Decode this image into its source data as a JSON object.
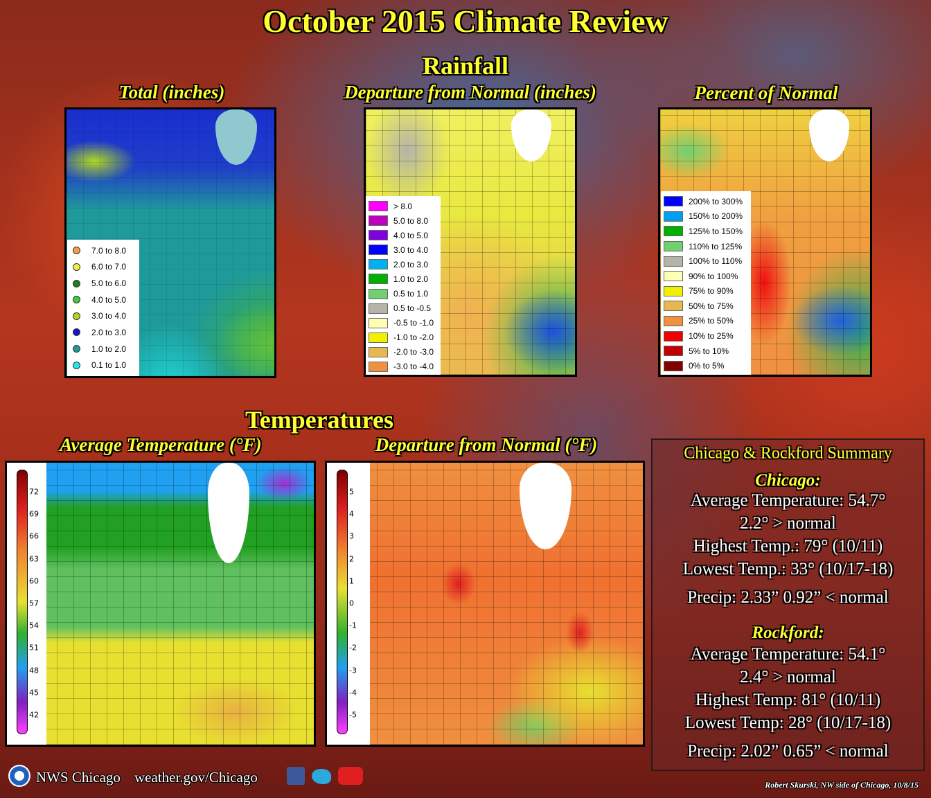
{
  "title": "October 2015 Climate Review",
  "rainfall": {
    "heading": "Rainfall",
    "panels": [
      {
        "title": "Total (inches)",
        "legend": [
          {
            "label": "7.0 to 8.0",
            "color": "#f0a040"
          },
          {
            "label": "6.0 to 7.0",
            "color": "#f0f040"
          },
          {
            "label": "5.0 to 6.0",
            "color": "#1f7f1f"
          },
          {
            "label": "4.0 to 5.0",
            "color": "#40c840"
          },
          {
            "label": "3.0 to 4.0",
            "color": "#b0d820"
          },
          {
            "label": "2.0 to 3.0",
            "color": "#1414c8"
          },
          {
            "label": "1.0 to 2.0",
            "color": "#1f9a9a"
          },
          {
            "label": "0.1 to 1.0",
            "color": "#20e8e8"
          }
        ]
      },
      {
        "title": "Departure from Normal (inches)",
        "legend": [
          {
            "label": "> 8.0",
            "color": "#ff00ff"
          },
          {
            "label": "5.0 to 8.0",
            "color": "#c000c0"
          },
          {
            "label": "4.0 to 5.0",
            "color": "#8000e0"
          },
          {
            "label": "3.0 to 4.0",
            "color": "#0000ff"
          },
          {
            "label": "2.0 to 3.0",
            "color": "#00b0f0"
          },
          {
            "label": "1.0 to 2.0",
            "color": "#00b000"
          },
          {
            "label": "0.5 to 1.0",
            "color": "#70d070"
          },
          {
            "label": "0.5 to -0.5",
            "color": "#b4b4a8"
          },
          {
            "label": "-0.5 to -1.0",
            "color": "#ffffb4"
          },
          {
            "label": "-1.0 to -2.0",
            "color": "#f0f000"
          },
          {
            "label": "-2.0 to -3.0",
            "color": "#e8b850"
          },
          {
            "label": "-3.0 to -4.0",
            "color": "#f09040"
          }
        ]
      },
      {
        "title": "Percent of Normal",
        "legend": [
          {
            "label": "200% to 300%",
            "color": "#0000ff"
          },
          {
            "label": "150% to 200%",
            "color": "#00a0f0"
          },
          {
            "label": "125% to 150%",
            "color": "#00b000"
          },
          {
            "label": "110% to 125%",
            "color": "#70d070"
          },
          {
            "label": "100% to 110%",
            "color": "#b4b4a8"
          },
          {
            "label": "90% to 100%",
            "color": "#ffffb4"
          },
          {
            "label": "75% to 90%",
            "color": "#f0f000"
          },
          {
            "label": "50% to 75%",
            "color": "#e8b850"
          },
          {
            "label": "25% to 50%",
            "color": "#f09040"
          },
          {
            "label": "10% to 25%",
            "color": "#f00000"
          },
          {
            "label": "5% to 10%",
            "color": "#c00000"
          },
          {
            "label": "0% to 5%",
            "color": "#800000"
          }
        ]
      }
    ]
  },
  "temperatures": {
    "heading": "Temperatures",
    "panels": [
      {
        "title": "Average Temperature (°F)",
        "scale": [
          72,
          69,
          66,
          63,
          60,
          57,
          54,
          51,
          48,
          45,
          42
        ]
      },
      {
        "title": "Departure from Normal (°F)",
        "scale": [
          5,
          4,
          3,
          2,
          1,
          0,
          -1,
          -2,
          -3,
          -4,
          -5
        ]
      }
    ]
  },
  "summary": {
    "title": "Chicago & Rockford Summary",
    "cities": [
      {
        "name": "Chicago:",
        "lines": [
          "Average Temperature: 54.7°",
          "2.2° > normal",
          "Highest Temp.: 79° (10/11)",
          "Lowest Temp.: 33° (10/17-18)",
          "Precip: 2.33”  0.92” < normal"
        ]
      },
      {
        "name": "Rockford:",
        "lines": [
          "Average Temperature: 54.1°",
          "2.4° > normal",
          "Highest Temp: 81° (10/11)",
          "Lowest Temp: 28° (10/17-18)",
          "Precip: 2.02”  0.65” < normal"
        ]
      }
    ]
  },
  "footer": {
    "org": "NWS Chicago",
    "url": "weather.gov/Chicago",
    "credit": "Robert Skurski, NW side of Chicago, 10/8/15"
  }
}
